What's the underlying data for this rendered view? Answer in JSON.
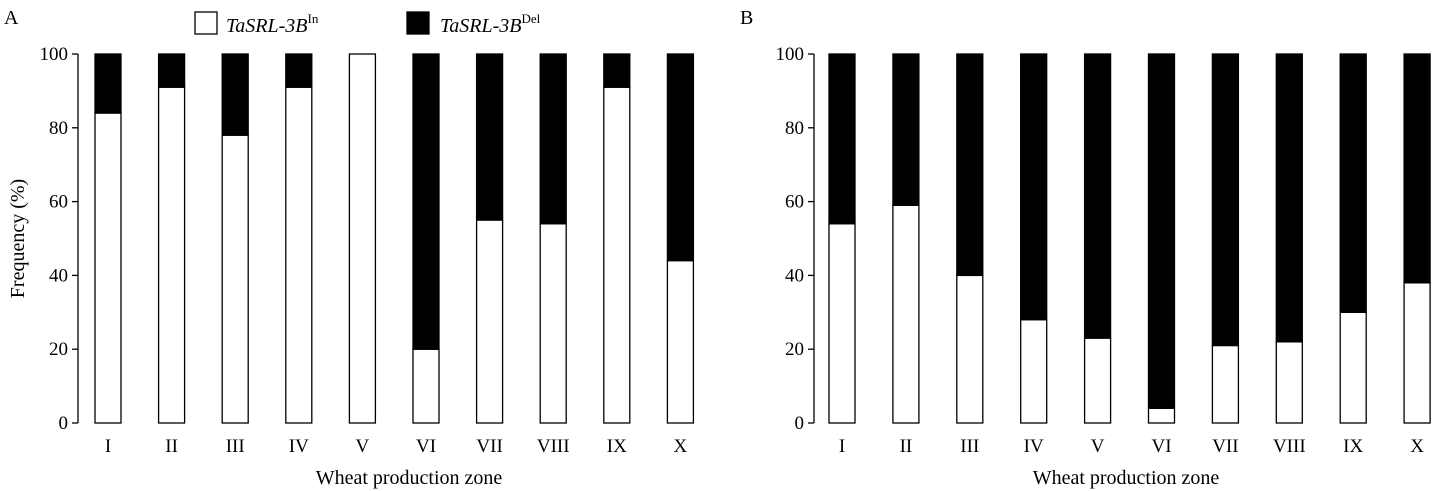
{
  "legend": {
    "entries": [
      {
        "name": "TaSRL-3B",
        "superscript": "In",
        "color": "#ffffff"
      },
      {
        "name": "TaSRL-3B",
        "superscript": "Del",
        "color": "#000000"
      }
    ]
  },
  "chart_data": [
    {
      "type": "bar",
      "stacked": true,
      "panel_label": "A",
      "xlabel": "Wheat production zone",
      "ylabel": "Frequency (%)",
      "ylim": [
        0,
        100
      ],
      "yticks": [
        0,
        20,
        40,
        60,
        80,
        100
      ],
      "categories": [
        "I",
        "II",
        "III",
        "IV",
        "V",
        "VI",
        "VII",
        "VIII",
        "IX",
        "X"
      ],
      "series": [
        {
          "name": "TaSRL-3B In",
          "color": "#ffffff",
          "values": [
            84,
            91,
            78,
            91,
            100,
            20,
            55,
            54,
            91,
            44
          ]
        },
        {
          "name": "TaSRL-3B Del",
          "color": "#000000",
          "values": [
            16,
            9,
            22,
            9,
            0,
            80,
            45,
            46,
            9,
            56
          ]
        }
      ]
    },
    {
      "type": "bar",
      "stacked": true,
      "panel_label": "B",
      "xlabel": "Wheat production zone",
      "ylabel": "",
      "ylim": [
        0,
        100
      ],
      "yticks": [
        0,
        20,
        40,
        60,
        80,
        100
      ],
      "categories": [
        "I",
        "II",
        "III",
        "IV",
        "V",
        "VI",
        "VII",
        "VIII",
        "IX",
        "X"
      ],
      "series": [
        {
          "name": "TaSRL-3B In",
          "color": "#ffffff",
          "values": [
            54,
            59,
            40,
            28,
            23,
            4,
            21,
            22,
            30,
            38
          ]
        },
        {
          "name": "TaSRL-3B Del",
          "color": "#000000",
          "values": [
            46,
            41,
            60,
            72,
            77,
            96,
            79,
            78,
            70,
            62
          ]
        }
      ]
    }
  ]
}
